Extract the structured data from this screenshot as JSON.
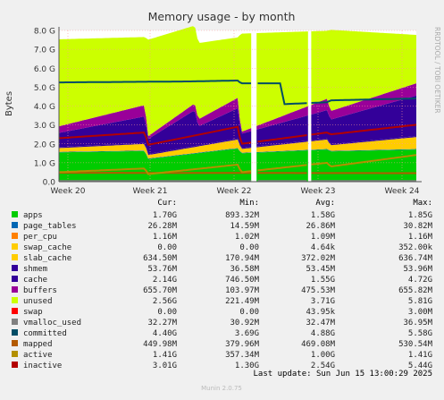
{
  "chart_data": {
    "type": "area",
    "title": "Memory usage - by month",
    "ylabel": "Bytes",
    "side_label": "RRDTOOL / TOBI OETIKER",
    "footer": "Munin 2.0.75",
    "last_update": "Last update: Sun Jun 15 13:00:29 2025",
    "ylim": [
      0,
      8.0
    ],
    "y_ticks": [
      0,
      1,
      2,
      3,
      4,
      5,
      6,
      7,
      8
    ],
    "y_tick_labels": [
      "0.0",
      "1.0 G",
      "2.0 G",
      "3.0 G",
      "4.0 G",
      "5.0 G",
      "6.0 G",
      "7.0 G",
      "8.0 G"
    ],
    "x_ticks": [
      {
        "label": "Week 20",
        "pos": 0.025
      },
      {
        "label": "Week 21",
        "pos": 0.255
      },
      {
        "label": "Week 22",
        "pos": 0.49
      },
      {
        "label": "Week 23",
        "pos": 0.725
      },
      {
        "label": "Week 24",
        "pos": 0.96
      }
    ],
    "gaps": [
      [
        0.538,
        0.553
      ],
      [
        0.697,
        0.706
      ]
    ],
    "col_headers": {
      "cur": "Cur:",
      "min": "Min:",
      "avg": "Avg:",
      "max": "Max:"
    },
    "grid": true,
    "legend_position": "bottom",
    "series": [
      {
        "name": "apps",
        "color": "#00cc00",
        "kind": "area",
        "cur": "1.70G",
        "min": "893.32M",
        "avg": "1.58G",
        "max": "1.85G",
        "x": [
          0,
          0.24,
          0.25,
          0.5,
          0.51,
          0.75,
          0.76,
          1
        ],
        "values": [
          1.55,
          1.62,
          1.2,
          1.75,
          1.5,
          1.7,
          1.6,
          1.7
        ]
      },
      {
        "name": "page_tables",
        "color": "#0066b3",
        "kind": "area",
        "cur": "26.28M",
        "min": "14.59M",
        "avg": "26.86M",
        "max": "30.82M",
        "x": [
          0,
          1
        ],
        "values": [
          0.026,
          0.027
        ]
      },
      {
        "name": "per_cpu",
        "color": "#ff8000",
        "kind": "area",
        "cur": "1.16M",
        "min": "1.02M",
        "avg": "1.09M",
        "max": "1.16M",
        "x": [
          0,
          1
        ],
        "values": [
          0.001,
          0.001
        ]
      },
      {
        "name": "swap_cache",
        "color": "#ffcc00",
        "kind": "area",
        "cur": "0.00",
        "min": "0.00",
        "avg": "4.64k",
        "max": "352.00k",
        "x": [
          0,
          1
        ],
        "values": [
          0,
          0
        ]
      },
      {
        "name": "slab_cache",
        "color": "#ffcc00",
        "kind": "area",
        "cur": "634.50M",
        "min": "170.94M",
        "avg": "372.02M",
        "max": "636.74M",
        "x": [
          0,
          0.24,
          0.25,
          0.5,
          0.51,
          0.75,
          0.76,
          1
        ],
        "values": [
          0.2,
          0.35,
          0.18,
          0.45,
          0.2,
          0.5,
          0.3,
          0.63
        ]
      },
      {
        "name": "shmem",
        "color": "#330099",
        "kind": "area",
        "cur": "53.76M",
        "min": "36.58M",
        "avg": "53.45M",
        "max": "53.96M",
        "x": [
          0,
          1
        ],
        "values": [
          0.053,
          0.054
        ]
      },
      {
        "name": "cache",
        "color": "#330099",
        "kind": "area",
        "cur": "2.14G",
        "min": "746.50M",
        "avg": "1.55G",
        "max": "4.72G",
        "x": [
          0,
          0.24,
          0.25,
          0.38,
          0.39,
          0.5,
          0.51,
          0.75,
          0.76,
          1
        ],
        "values": [
          0.75,
          1.4,
          0.8,
          1.9,
          1.0,
          1.6,
          0.75,
          1.5,
          1.3,
          2.14
        ]
      },
      {
        "name": "buffers",
        "color": "#990099",
        "kind": "area",
        "cur": "655.70M",
        "min": "103.97M",
        "avg": "475.53M",
        "max": "655.82M",
        "x": [
          0,
          0.24,
          0.25,
          0.5,
          0.51,
          0.75,
          0.76,
          1
        ],
        "values": [
          0.35,
          0.6,
          0.15,
          0.55,
          0.1,
          0.6,
          0.45,
          0.65
        ]
      },
      {
        "name": "unused",
        "color": "#ccff00",
        "kind": "area",
        "cur": "2.56G",
        "min": "221.49M",
        "avg": "3.71G",
        "max": "5.81G",
        "x": [
          0,
          0.24,
          0.25,
          0.5,
          0.51,
          0.75,
          0.76,
          1
        ],
        "values": [
          4.6,
          3.6,
          5.1,
          3.2,
          5.2,
          3.6,
          4.3,
          2.56
        ]
      },
      {
        "name": "swap",
        "color": "#ff0000",
        "kind": "area",
        "cur": "0.00",
        "min": "0.00",
        "avg": "43.95k",
        "max": "3.00M",
        "x": [
          0,
          1
        ],
        "values": [
          0,
          0
        ]
      },
      {
        "name": "vmalloc_used",
        "color": "#808080",
        "kind": "line",
        "cur": "32.27M",
        "min": "30.92M",
        "avg": "32.47M",
        "max": "36.95M",
        "x": [
          0,
          1
        ],
        "values": [
          0.032,
          0.032
        ]
      },
      {
        "name": "committed",
        "color": "#004d66",
        "kind": "line",
        "cur": "4.40G",
        "min": "3.69G",
        "avg": "4.88G",
        "max": "5.58G",
        "x": [
          0,
          0.35,
          0.36,
          0.5,
          0.51,
          0.62,
          0.63,
          0.75,
          0.76,
          1
        ],
        "values": [
          5.25,
          5.3,
          5.3,
          5.35,
          5.2,
          5.2,
          4.1,
          4.2,
          4.3,
          4.4
        ]
      },
      {
        "name": "mapped",
        "color": "#b35a00",
        "kind": "line",
        "cur": "449.98M",
        "min": "379.96M",
        "avg": "469.08M",
        "max": "530.54M",
        "x": [
          0,
          1
        ],
        "values": [
          0.47,
          0.45
        ]
      },
      {
        "name": "active",
        "color": "#b38f00",
        "kind": "line",
        "cur": "1.41G",
        "min": "357.34M",
        "avg": "1.00G",
        "max": "1.41G",
        "x": [
          0,
          0.24,
          0.25,
          0.5,
          0.51,
          0.75,
          0.76,
          1
        ],
        "values": [
          0.5,
          0.7,
          0.4,
          0.9,
          0.5,
          1.0,
          0.8,
          1.41
        ]
      },
      {
        "name": "inactive",
        "color": "#b30000",
        "kind": "line",
        "cur": "3.01G",
        "min": "1.30G",
        "avg": "2.54G",
        "max": "5.44G",
        "x": [
          0,
          0.24,
          0.25,
          0.5,
          0.51,
          0.75,
          0.76,
          1
        ],
        "values": [
          2.3,
          2.6,
          1.95,
          2.9,
          2.0,
          2.6,
          2.5,
          3.01
        ]
      }
    ]
  }
}
